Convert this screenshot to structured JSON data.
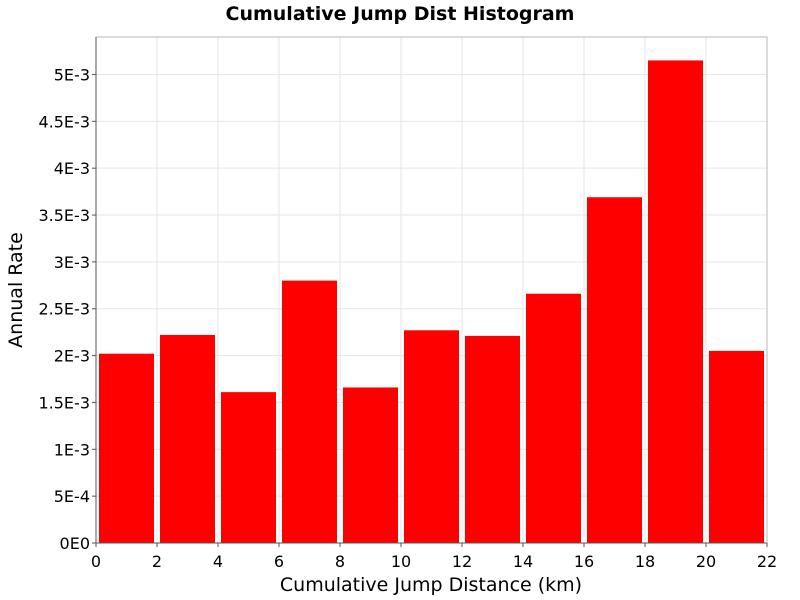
{
  "chart_data": {
    "type": "bar",
    "title": "Cumulative Jump Dist Histogram",
    "xlabel": "Cumulative Jump Distance (km)",
    "ylabel": "Annual Rate",
    "xlim": [
      0,
      22
    ],
    "ylim": [
      0,
      0.0054
    ],
    "x_ticks": [
      0,
      2,
      4,
      6,
      8,
      10,
      12,
      14,
      16,
      18,
      20,
      22
    ],
    "x_tick_labels": [
      "0",
      "2",
      "4",
      "6",
      "8",
      "10",
      "12",
      "14",
      "16",
      "18",
      "20",
      "22"
    ],
    "y_ticks": [
      0,
      0.0005,
      0.001,
      0.0015,
      0.002,
      0.0025,
      0.003,
      0.0035,
      0.004,
      0.0045,
      0.005
    ],
    "y_tick_labels": [
      "0E0",
      "5E-4",
      "1E-3",
      "1.5E-3",
      "2E-3",
      "2.5E-3",
      "3E-3",
      "3.5E-3",
      "4E-3",
      "4.5E-3",
      "5E-3"
    ],
    "bin_width": 2,
    "bins": [
      {
        "x": 1,
        "value": 0.00202
      },
      {
        "x": 3,
        "value": 0.00222
      },
      {
        "x": 5,
        "value": 0.00161
      },
      {
        "x": 7,
        "value": 0.0028
      },
      {
        "x": 9,
        "value": 0.00166
      },
      {
        "x": 11,
        "value": 0.00227
      },
      {
        "x": 13,
        "value": 0.00221
      },
      {
        "x": 15,
        "value": 0.00266
      },
      {
        "x": 17,
        "value": 0.00369
      },
      {
        "x": 19,
        "value": 0.00515
      },
      {
        "x": 21,
        "value": 0.00205
      }
    ],
    "bar_color": "#ff0000",
    "grid": true
  }
}
